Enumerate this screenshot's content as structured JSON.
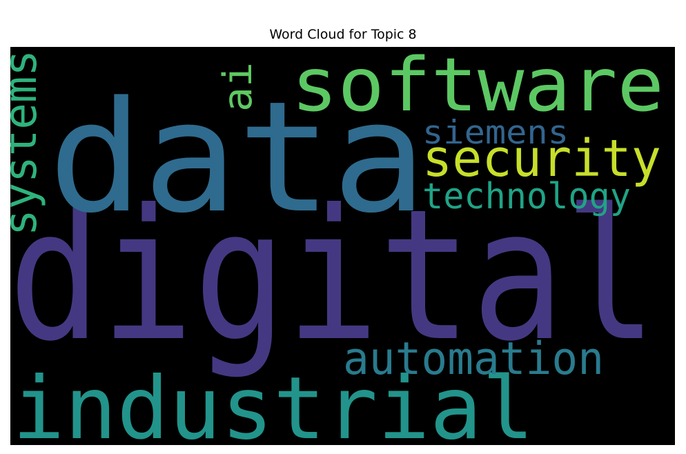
{
  "chart_data": {
    "type": "wordcloud",
    "title": "Word Cloud for Topic 8",
    "background": "#000000",
    "words": [
      {
        "text": "digital",
        "weight": 1.0,
        "color": "#453882"
      },
      {
        "text": "data",
        "weight": 0.83,
        "color": "#2f6b8e"
      },
      {
        "text": "industrial",
        "weight": 0.5,
        "color": "#22948b"
      },
      {
        "text": "software",
        "weight": 0.44,
        "color": "#5cc863"
      },
      {
        "text": "systems",
        "weight": 0.26,
        "color": "#2eb37c"
      },
      {
        "text": "security",
        "weight": 0.3,
        "color": "#c7df2a"
      },
      {
        "text": "automation",
        "weight": 0.27,
        "color": "#297b8e"
      },
      {
        "text": "technology",
        "weight": 0.21,
        "color": "#20a386"
      },
      {
        "text": "siemens",
        "weight": 0.2,
        "color": "#32658e"
      },
      {
        "text": "ai",
        "weight": 0.2,
        "color": "#5ec962"
      }
    ]
  }
}
